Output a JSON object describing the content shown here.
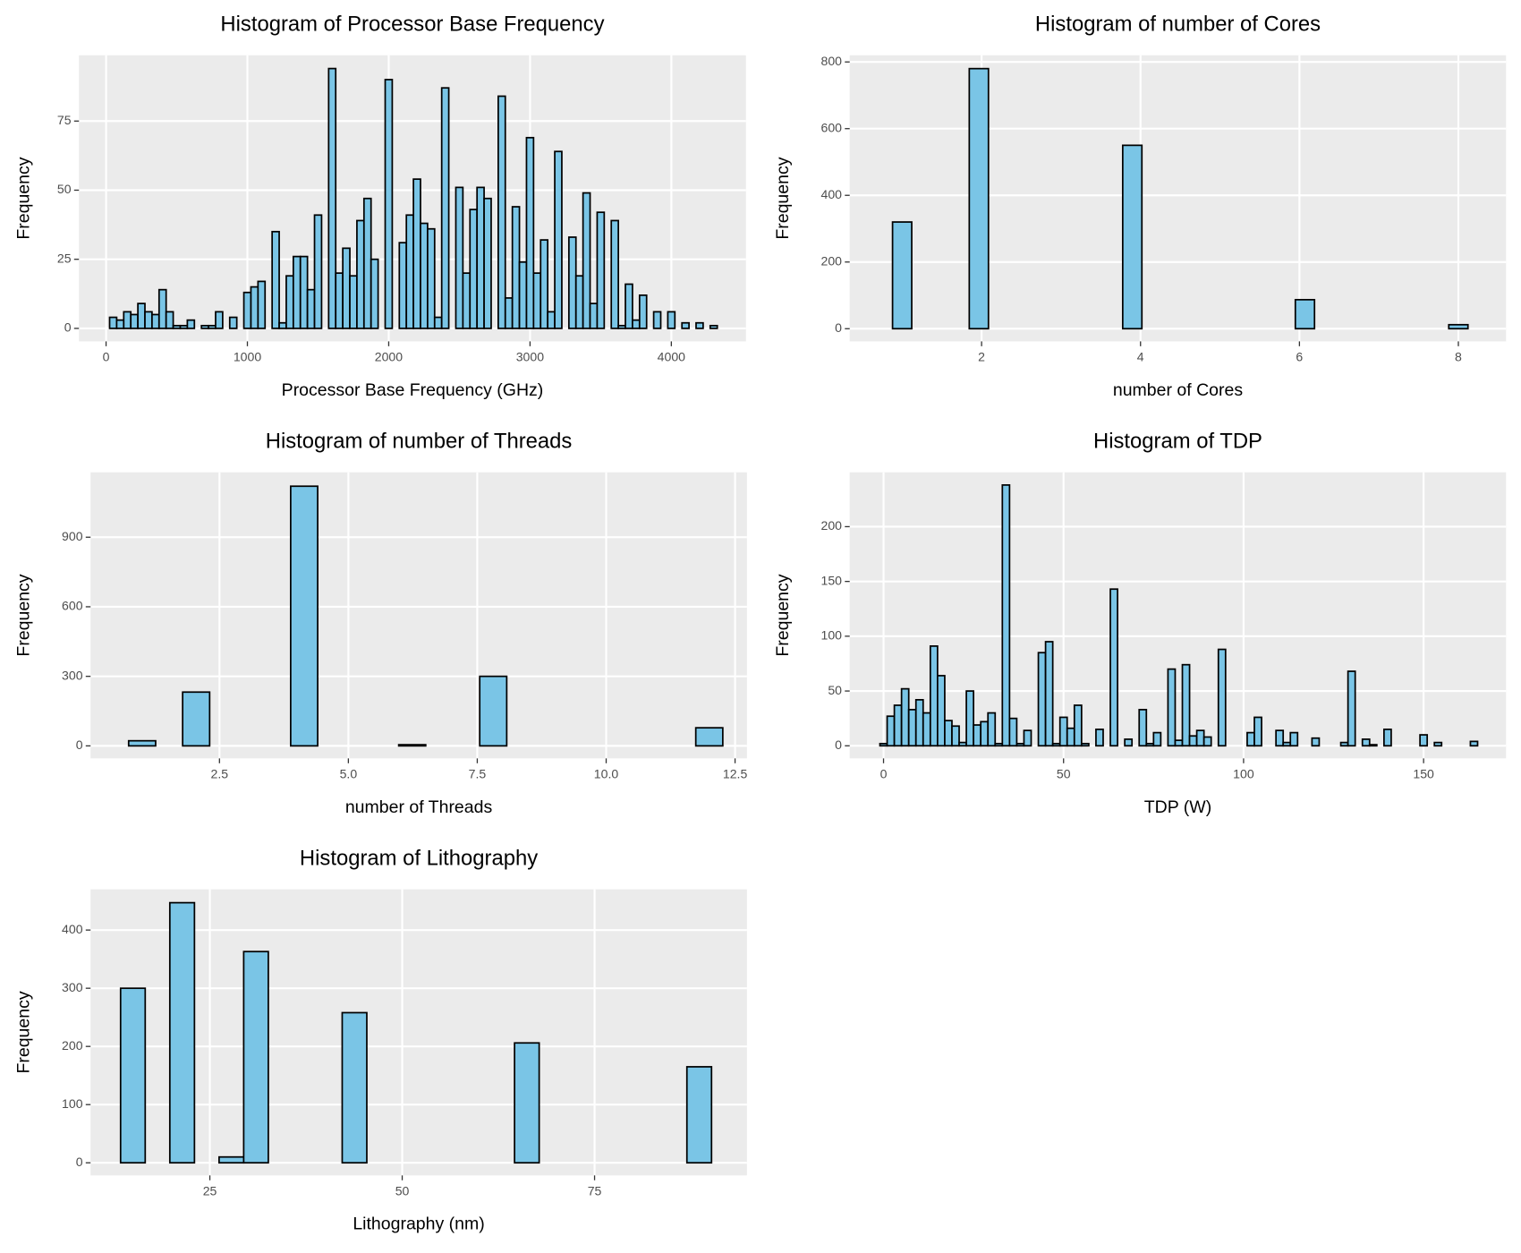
{
  "chart_data": [
    {
      "type": "histogram",
      "title": "Histogram of Processor Base Frequency",
      "x_label": "Processor Base Frequency (GHz)",
      "y_label": "Frequency",
      "color": "#7ac5e6",
      "edgecolor": "#000000",
      "grid": true,
      "bins": [
        25,
        75,
        125,
        175,
        225,
        275,
        325,
        375,
        425,
        475,
        525,
        575,
        625,
        675,
        725,
        775,
        825,
        875,
        925,
        975,
        1025,
        1075,
        1125,
        1175,
        1225,
        1275,
        1325,
        1375,
        1425,
        1475,
        1525,
        1575,
        1625,
        1675,
        1725,
        1775,
        1825,
        1875,
        1925,
        1975,
        2025,
        2075,
        2125,
        2175,
        2225,
        2275,
        2325,
        2375,
        2425,
        2475,
        2525,
        2575,
        2625,
        2675,
        2725,
        2775,
        2825,
        2875,
        2925,
        2975,
        3025,
        3075,
        3125,
        3175,
        3225,
        3275,
        3325,
        3375,
        3425,
        3475,
        3525,
        3575,
        3625,
        3675,
        3725,
        3775,
        3825,
        3875,
        3925,
        3975,
        4025,
        4075,
        4125,
        4175,
        4225,
        4275,
        4325
      ],
      "counts": [
        4,
        3,
        6,
        5,
        9,
        6,
        5,
        14,
        6,
        1,
        1,
        3,
        0,
        1,
        1,
        6,
        0,
        4,
        0,
        13,
        15,
        17,
        0,
        35,
        2,
        19,
        26,
        26,
        14,
        41,
        0,
        94,
        20,
        29,
        19,
        39,
        47,
        25,
        0,
        90,
        0,
        31,
        41,
        54,
        38,
        36,
        4,
        87,
        0,
        51,
        20,
        43,
        51,
        47,
        0,
        84,
        11,
        44,
        24,
        69,
        20,
        32,
        6,
        64,
        0,
        33,
        19,
        49,
        9,
        42,
        0,
        39,
        1,
        16,
        3,
        12,
        0,
        6,
        0,
        6,
        0,
        2,
        0,
        2,
        0,
        1
      ],
      "xlim": [
        -192,
        4528
      ],
      "xticks": [
        0,
        1000,
        2000,
        3000,
        4000
      ],
      "ylim": [
        -4.7,
        98.8
      ],
      "yticks": [
        0,
        25,
        50,
        75
      ]
    },
    {
      "type": "histogram",
      "title": "Histogram of number of Cores",
      "x_label": "number of Cores",
      "y_label": "Frequency",
      "color": "#7ac5e6",
      "edgecolor": "#000000",
      "grid": true,
      "bins": [
        0.8793,
        1.1207,
        1.3621,
        1.6034,
        1.8448,
        2.0862,
        2.3276,
        2.569,
        2.8103,
        3.0517,
        3.2931,
        3.5345,
        3.7759,
        4.0172,
        4.2586,
        4.5,
        4.7414,
        4.9828,
        5.2241,
        5.4655,
        5.7069,
        5.9483,
        6.1897,
        6.431,
        6.6724,
        6.9138,
        7.1552,
        7.3966,
        7.6379,
        7.8793,
        8.1207
      ],
      "counts": [
        320,
        0,
        0,
        0,
        780,
        0,
        0,
        0,
        0,
        0,
        0,
        0,
        550,
        0,
        0,
        0,
        0,
        0,
        0,
        0,
        0,
        87,
        0,
        0,
        0,
        0,
        0,
        0,
        0,
        12
      ],
      "xlim": [
        0.34,
        8.6
      ],
      "xticks": [
        2,
        4,
        6,
        8
      ],
      "ylim": [
        -38,
        820
      ],
      "yticks": [
        0,
        200,
        400,
        600,
        800
      ]
    },
    {
      "type": "histogram",
      "title": "Histogram of number of Threads",
      "x_label": "number of Threads",
      "y_label": "Frequency",
      "color": "#7ac5e6",
      "edgecolor": "#000000",
      "grid": true,
      "bins": [
        0.7381,
        1.2619,
        1.7857,
        2.3095,
        2.8333,
        3.3571,
        3.881,
        4.4048,
        4.9286,
        5.4524,
        5.9762,
        6.5,
        7.0238,
        7.5476,
        8.0714,
        8.5952,
        9.119,
        9.6429,
        10.1667,
        10.6905,
        11.2143,
        11.7381,
        12.2619
      ],
      "counts": [
        22,
        0,
        232,
        0,
        0,
        0,
        1120,
        0,
        0,
        0,
        5,
        0,
        0,
        300,
        0,
        0,
        0,
        0,
        0,
        0,
        0,
        78
      ],
      "xlim": [
        0,
        12.73
      ],
      "xticks": [
        2.5,
        {
          "value": 5,
          "label": "5.0"
        },
        7.5,
        {
          "value": 10,
          "label": "10.0"
        },
        12.5
      ],
      "ylim": [
        -54,
        1180
      ],
      "yticks": [
        0,
        300,
        600,
        900
      ]
    },
    {
      "type": "histogram",
      "title": "Histogram of TDP",
      "x_label": "TDP (W)",
      "y_label": "Frequency",
      "color": "#7ac5e6",
      "edgecolor": "#000000",
      "grid": true,
      "bins": [
        -1,
        1,
        3,
        5,
        7,
        9,
        11,
        13,
        15,
        17,
        19,
        21,
        23,
        25,
        27,
        29,
        31,
        33,
        35,
        37,
        39,
        41,
        43,
        45,
        47,
        49,
        51,
        53,
        55,
        57,
        59,
        61,
        63,
        65,
        67,
        69,
        71,
        73,
        75,
        77,
        79,
        81,
        83,
        85,
        87,
        89,
        91,
        93,
        95,
        97,
        99,
        101,
        103,
        105,
        107,
        109,
        111,
        113,
        115,
        117,
        119,
        121,
        123,
        125,
        127,
        129,
        131,
        133,
        135,
        137,
        139,
        141,
        143,
        145,
        147,
        149,
        151,
        153,
        155,
        157,
        159,
        161,
        163,
        165
      ],
      "counts": [
        2,
        27,
        37,
        52,
        33,
        42,
        30,
        91,
        64,
        23,
        18,
        3,
        50,
        19,
        22,
        30,
        2,
        238,
        25,
        2,
        14,
        0,
        85,
        95,
        2,
        26,
        16,
        37,
        2,
        0,
        15,
        0,
        143,
        0,
        6,
        0,
        33,
        2,
        12,
        0,
        70,
        5,
        74,
        9,
        14,
        8,
        0,
        88,
        0,
        0,
        0,
        12,
        26,
        0,
        0,
        14,
        3,
        12,
        0,
        0,
        7,
        0,
        0,
        0,
        3,
        68,
        0,
        6,
        1,
        0,
        15,
        0,
        0,
        0,
        0,
        10,
        0,
        3,
        0,
        0,
        0,
        0,
        4
      ],
      "xlim": [
        -9.4,
        172.9
      ],
      "xticks": [
        0,
        50,
        100,
        150
      ],
      "ylim": [
        -11.5,
        249.6
      ],
      "yticks": [
        0,
        50,
        100,
        150,
        200
      ]
    },
    {
      "type": "histogram",
      "title": "Histogram of Lithography",
      "x_label": "Lithography (nm)",
      "y_label": "Frequency",
      "color": "#7ac5e6",
      "edgecolor": "#000000",
      "grid": true,
      "bins": [
        13.4,
        16.6,
        19.8,
        23,
        26.2,
        29.4,
        32.6,
        35.8,
        39,
        42.2,
        45.4,
        48.6,
        51.8,
        55,
        58.2,
        61.4,
        64.6,
        67.8,
        71,
        74.2,
        77.4,
        80.6,
        83.8,
        87,
        90.2
      ],
      "counts": [
        300,
        0,
        447,
        0,
        10,
        363,
        0,
        0,
        0,
        258,
        0,
        0,
        0,
        0,
        0,
        0,
        206,
        0,
        0,
        0,
        0,
        0,
        0,
        165
      ],
      "xlim": [
        9.5,
        94.8
      ],
      "xticks": [
        25,
        50,
        75
      ],
      "ylim": [
        -21.7,
        470
      ],
      "yticks": [
        0,
        100,
        200,
        300,
        400
      ]
    }
  ]
}
